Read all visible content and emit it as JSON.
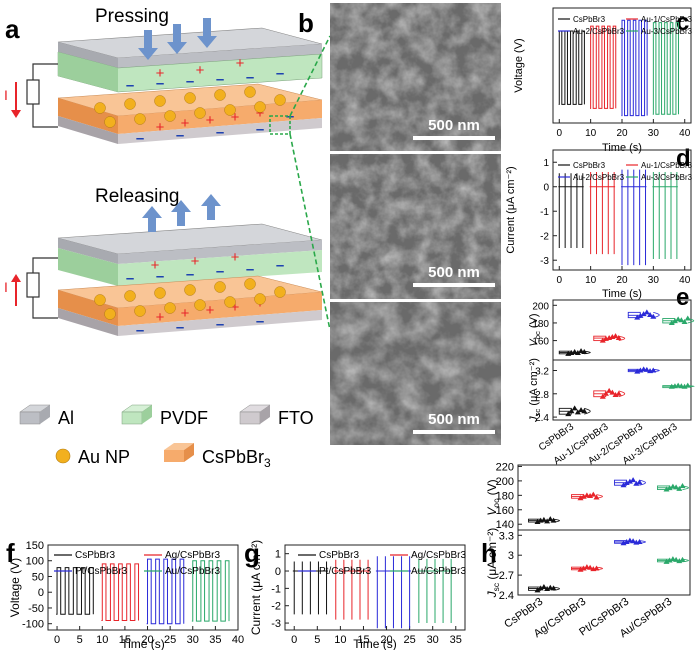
{
  "colors": {
    "black": "#111111",
    "red": "#e8242a",
    "blue": "#2a2ad8",
    "green": "#2aa86a",
    "accent": "#e8242a",
    "scheme_dash": "#2aa84a",
    "al": "#b8bac0",
    "pvdf": "#bfe6bf",
    "fto": "#cfcace",
    "csp": "#f6ab6c",
    "au": "#f2b01e",
    "arrow": "#6d93cc"
  },
  "panels": {
    "a": "a",
    "b": "b",
    "c": "c",
    "d": "d",
    "e": "e",
    "f": "f",
    "g": "g",
    "h": "h"
  },
  "scheme": {
    "pressing": "Pressing",
    "releasing": "Releasing",
    "current_symbol": "I",
    "legend": [
      {
        "label": "Al",
        "swatch": "al"
      },
      {
        "label": "PVDF",
        "swatch": "pvdf"
      },
      {
        "label": "FTO",
        "swatch": "fto"
      },
      {
        "label": "Au NP",
        "swatch": "au"
      },
      {
        "label": "CsPbBr",
        "sub": "3",
        "swatch": "csp"
      }
    ]
  },
  "sem": {
    "scale_label": "500 nm",
    "icons": [
      "sem-texture-1",
      "sem-texture-2",
      "sem-texture-3"
    ]
  },
  "chart_data": [
    {
      "panel": "c",
      "type": "line",
      "title": "",
      "xlabel": "Time (s)",
      "ylabel": "Voltage (V)",
      "xlim": [
        -2,
        42
      ],
      "ylim": [
        -110,
        125
      ],
      "xticks": [
        0,
        10,
        20,
        30,
        40
      ],
      "yticks": [],
      "legend": [
        "CsPbBr3",
        "Au-1/CsPbBr3",
        "Au-2/CsPbBr3",
        "Au-3/CsPbBr3"
      ],
      "series": [
        {
          "name": "CsPbBr3",
          "color": "black",
          "start": 0,
          "end": 7.2,
          "count": 5,
          "high": 78,
          "low": -72
        },
        {
          "name": "Au-1/CsPbBr3",
          "color": "red",
          "start": 10,
          "end": 17.2,
          "count": 5,
          "high": 88,
          "low": -80
        },
        {
          "name": "Au-2/CsPbBr3",
          "color": "blue",
          "start": 20,
          "end": 27.2,
          "count": 5,
          "high": 100,
          "low": -95
        },
        {
          "name": "Au-3/CsPbBr3",
          "color": "green",
          "start": 30,
          "end": 37.2,
          "count": 5,
          "high": 95,
          "low": -92
        }
      ]
    },
    {
      "panel": "d",
      "type": "line",
      "title": "",
      "xlabel": "Time (s)",
      "ylabel": "Current (μA cm⁻²)",
      "xlim": [
        -2,
        42
      ],
      "ylim": [
        -3.4,
        1.5
      ],
      "xticks": [
        0,
        10,
        20,
        30,
        40
      ],
      "yticks": [
        1,
        0,
        -1,
        -2,
        -3
      ],
      "legend": [
        "CsPbBr3",
        "Au-1/CsPbBr3",
        "Au-2/CsPbBr3",
        "Au-3/CsPbBr3"
      ],
      "series": [
        {
          "name": "CsPbBr3",
          "color": "black",
          "start": 0,
          "end": 7.5,
          "count": 5,
          "high": 0.55,
          "low": -2.5
        },
        {
          "name": "Au-1/CsPbBr3",
          "color": "red",
          "start": 10,
          "end": 17.5,
          "count": 5,
          "high": 0.6,
          "low": -2.75
        },
        {
          "name": "Au-2/CsPbBr3",
          "color": "blue",
          "start": 20,
          "end": 27.5,
          "count": 5,
          "high": 0.7,
          "low": -3.2
        },
        {
          "name": "Au-3/CsPbBr3",
          "color": "green",
          "start": 30,
          "end": 37.5,
          "count": 5,
          "high": 0.6,
          "low": -2.95
        }
      ]
    },
    {
      "panel": "e",
      "type": "scatter",
      "title": "",
      "categories": [
        "CsPbBr3",
        "Au-1/CsPbBr3",
        "Au-2/CsPbBr3",
        "Au-3/CsPbBr3"
      ],
      "colors": [
        "black",
        "red",
        "blue",
        "green"
      ],
      "top": {
        "ylabel": "V",
        "ylabel_sub": "oc",
        "ylabel_unit": " (V)",
        "ylim": [
          138,
          206
        ],
        "yticks": [
          160,
          180,
          200
        ],
        "values": [
          [
            145,
            146,
            147,
            146,
            148,
            147
          ],
          [
            160,
            162,
            163,
            164,
            165,
            163
          ],
          [
            186,
            188,
            190,
            192,
            189,
            187
          ],
          [
            180,
            182,
            184,
            183,
            181,
            185
          ]
        ]
      },
      "bottom": {
        "ylabel": "J",
        "ylabel_sub": "sc",
        "ylabel_unit": " (μA cm⁻²)",
        "ylim": [
          2.35,
          3.38
        ],
        "yticks": [
          2.4,
          2.8,
          3.2
        ],
        "values": [
          [
            2.45,
            2.5,
            2.55,
            2.48,
            2.52,
            2.5
          ],
          [
            2.75,
            2.8,
            2.85,
            2.82,
            2.78,
            2.8
          ],
          [
            3.18,
            3.2,
            3.22,
            3.21,
            3.19,
            3.2
          ],
          [
            2.92,
            2.93,
            2.94,
            2.93,
            2.92,
            2.94
          ]
        ]
      }
    },
    {
      "panel": "f",
      "type": "line",
      "title": "",
      "xlabel": "Time (s)",
      "ylabel": "Voltage (V)",
      "xlim": [
        -2,
        40
      ],
      "ylim": [
        -120,
        150
      ],
      "xticks": [
        0,
        5,
        10,
        15,
        20,
        25,
        30,
        35,
        40
      ],
      "yticks": [
        150,
        100,
        50,
        0,
        -50,
        -100
      ],
      "legend": [
        "CsPbBr3",
        "Ag/CsPbBr3",
        "Pt/CsPbBr3",
        "Au/CsPbBr3"
      ],
      "series": [
        {
          "name": "CsPbBr3",
          "color": "black",
          "start": 0,
          "end": 7.2,
          "count": 5,
          "high": 78,
          "low": -70
        },
        {
          "name": "Ag/CsPbBr3",
          "color": "red",
          "start": 10,
          "end": 17.2,
          "count": 5,
          "high": 90,
          "low": -90
        },
        {
          "name": "Pt/CsPbBr3",
          "color": "blue",
          "start": 20,
          "end": 27.2,
          "count": 5,
          "high": 105,
          "low": -100
        },
        {
          "name": "Au/CsPbBr3",
          "color": "green",
          "start": 30,
          "end": 37.2,
          "count": 5,
          "high": 100,
          "low": -92
        }
      ]
    },
    {
      "panel": "g",
      "type": "line",
      "title": "",
      "xlabel": "Time (s)",
      "ylabel": "Current (μA cm⁻²)",
      "xlim": [
        -2,
        37
      ],
      "ylim": [
        -3.4,
        1.5
      ],
      "xticks": [
        0,
        5,
        10,
        15,
        20,
        25,
        30,
        35
      ],
      "yticks": [
        1,
        0,
        -1,
        -2,
        -3
      ],
      "legend": [
        "CsPbBr3",
        "Ag/CsPbBr3",
        "Pt/CsPbBr3",
        "Au/CsPbBr3"
      ],
      "series": [
        {
          "name": "CsPbBr3",
          "color": "black",
          "start": 0,
          "end": 7,
          "count": 5,
          "high": 0.55,
          "low": -2.5
        },
        {
          "name": "Ag/CsPbBr3",
          "color": "red",
          "start": 9,
          "end": 16,
          "count": 5,
          "high": 0.65,
          "low": -2.8
        },
        {
          "name": "Pt/CsPbBr3",
          "color": "blue",
          "start": 18,
          "end": 25,
          "count": 5,
          "high": 0.85,
          "low": -3.3
        },
        {
          "name": "Au/CsPbBr3",
          "color": "green",
          "start": 27,
          "end": 34,
          "count": 5,
          "high": 0.7,
          "low": -3.0
        }
      ]
    },
    {
      "panel": "h",
      "type": "scatter",
      "title": "",
      "categories": [
        "CsPbBr3",
        "Ag/CsPbBr3",
        "Pt/CsPbBr3",
        "Au/CsPbBr3"
      ],
      "colors": [
        "black",
        "red",
        "blue",
        "green"
      ],
      "top": {
        "ylabel": "V",
        "ylabel_sub": "oc",
        "ylabel_unit": " (V)",
        "ylim": [
          132,
          222
        ],
        "yticks": [
          140,
          160,
          180,
          200,
          220
        ],
        "values": [
          [
            143,
            145,
            146,
            144,
            147,
            145
          ],
          [
            176,
            178,
            180,
            179,
            181,
            177
          ],
          [
            194,
            197,
            199,
            201,
            196,
            198
          ],
          [
            188,
            190,
            192,
            191,
            189,
            193
          ]
        ]
      },
      "bottom": {
        "ylabel": "J",
        "ylabel_sub": "sc",
        "ylabel_unit": " (μA cm⁻²)",
        "ylim": [
          2.4,
          3.38
        ],
        "yticks": [
          2.4,
          2.7,
          3.0,
          3.3
        ],
        "values": [
          [
            2.47,
            2.5,
            2.52,
            2.49,
            2.51,
            2.5
          ],
          [
            2.78,
            2.8,
            2.82,
            2.81,
            2.79,
            2.8
          ],
          [
            3.18,
            3.2,
            3.22,
            3.21,
            3.19,
            3.2
          ],
          [
            2.9,
            2.92,
            2.94,
            2.93,
            2.91,
            2.93
          ]
        ]
      }
    }
  ]
}
